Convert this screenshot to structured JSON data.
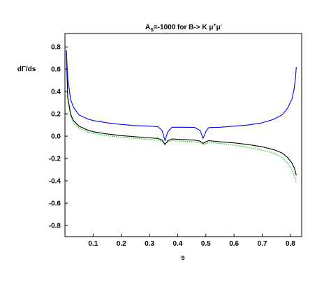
{
  "chart_data": {
    "type": "line",
    "title": {
      "a": "A",
      "a_sub": "S",
      "rest": "=-1000 for  B-> K ",
      "mu": "μ",
      "plus": "+",
      "minus": "-"
    },
    "xlabel": "s",
    "ylabel": "dΓ/ds",
    "xlim": [
      0.0,
      0.84
    ],
    "ylim": [
      -0.9,
      0.92
    ],
    "xticks": [
      0.1,
      0.2,
      0.3,
      0.4,
      0.5,
      0.6,
      0.7,
      0.8
    ],
    "xtick_labels": [
      "0.1",
      "0.2",
      "0.3",
      "0.4",
      "0.5",
      "0.6",
      "0.7",
      "0.8"
    ],
    "yticks": [
      0.8,
      0.6,
      0.4,
      0.2,
      0.0,
      -0.2,
      -0.4,
      -0.6,
      -0.8
    ],
    "ytick_labels": [
      "0.8",
      "0.6",
      "0.4",
      "0.2",
      "0.0",
      "-0.2",
      "-0.4",
      "-0.6",
      "-0.8"
    ],
    "series": [
      {
        "color": "#0000ff",
        "style": "solid",
        "x": [
          0.005,
          0.01,
          0.02,
          0.03,
          0.05,
          0.08,
          0.1,
          0.15,
          0.2,
          0.25,
          0.3,
          0.33,
          0.345,
          0.355,
          0.365,
          0.38,
          0.42,
          0.46,
          0.48,
          0.49,
          0.5,
          0.51,
          0.55,
          0.6,
          0.65,
          0.7,
          0.74,
          0.77,
          0.79,
          0.805,
          0.813,
          0.818,
          0.821
        ],
        "y": [
          0.77,
          0.52,
          0.33,
          0.26,
          0.19,
          0.155,
          0.14,
          0.12,
          0.105,
          0.095,
          0.09,
          0.085,
          0.05,
          -0.04,
          0.04,
          0.08,
          0.08,
          0.078,
          0.05,
          -0.02,
          0.04,
          0.077,
          0.08,
          0.09,
          0.1,
          0.12,
          0.15,
          0.19,
          0.25,
          0.33,
          0.42,
          0.52,
          0.62
        ]
      },
      {
        "color": "#000000",
        "style": "solid",
        "x": [
          0.005,
          0.01,
          0.02,
          0.03,
          0.05,
          0.08,
          0.1,
          0.15,
          0.2,
          0.25,
          0.3,
          0.33,
          0.345,
          0.355,
          0.365,
          0.38,
          0.42,
          0.46,
          0.48,
          0.49,
          0.5,
          0.51,
          0.55,
          0.6,
          0.65,
          0.7,
          0.74,
          0.77,
          0.79,
          0.805,
          0.813,
          0.818,
          0.821
        ],
        "y": [
          0.77,
          0.35,
          0.2,
          0.14,
          0.09,
          0.055,
          0.04,
          0.02,
          0.005,
          -0.005,
          -0.015,
          -0.02,
          -0.035,
          -0.075,
          -0.04,
          -0.025,
          -0.03,
          -0.035,
          -0.045,
          -0.065,
          -0.05,
          -0.04,
          -0.05,
          -0.06,
          -0.075,
          -0.095,
          -0.12,
          -0.15,
          -0.19,
          -0.24,
          -0.28,
          -0.32,
          -0.35
        ]
      },
      {
        "color": "#33cc33",
        "style": "dotted",
        "x": [
          0.005,
          0.01,
          0.02,
          0.03,
          0.05,
          0.08,
          0.1,
          0.15,
          0.2,
          0.25,
          0.3,
          0.33,
          0.345,
          0.355,
          0.365,
          0.38,
          0.42,
          0.46,
          0.48,
          0.49,
          0.5,
          0.51,
          0.55,
          0.6,
          0.65,
          0.7,
          0.74,
          0.77,
          0.79,
          0.805,
          0.813,
          0.818,
          0.821
        ],
        "y": [
          0.75,
          0.33,
          0.18,
          0.12,
          0.07,
          0.04,
          0.025,
          0.005,
          -0.01,
          -0.02,
          -0.03,
          -0.035,
          -0.045,
          -0.07,
          -0.05,
          -0.04,
          -0.045,
          -0.05,
          -0.06,
          -0.075,
          -0.065,
          -0.055,
          -0.065,
          -0.08,
          -0.1,
          -0.125,
          -0.15,
          -0.19,
          -0.24,
          -0.3,
          -0.35,
          -0.39,
          -0.42
        ]
      }
    ],
    "grid": false,
    "legend": "none"
  }
}
